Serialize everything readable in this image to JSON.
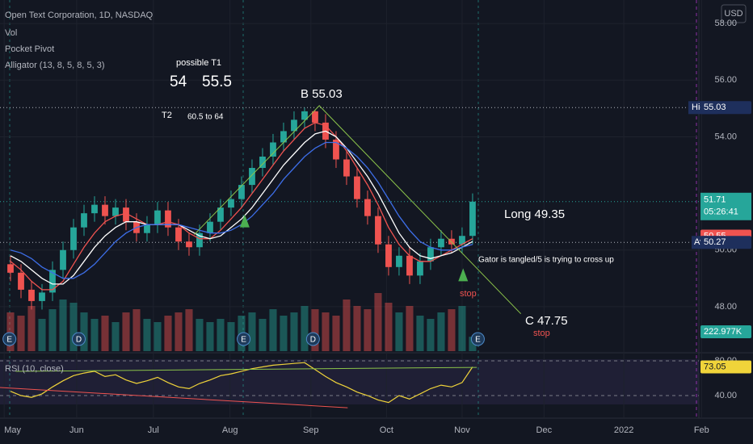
{
  "chart_data": {
    "type": "candlestick",
    "title": "Open Text Corporation, 1D, NASDAQ",
    "indicators": [
      "Vol",
      "Pocket Pivot",
      "Alligator (13, 8, 5, 8, 5, 3)"
    ],
    "currency": "USD",
    "up_color": "#26a69a",
    "down_color": "#ef5350",
    "grid": true,
    "xlim": [
      -1,
      70.7
    ],
    "xticks": [
      {
        "value": -0.6,
        "label": "May"
      },
      {
        "value": 6.3,
        "label": "Jun"
      },
      {
        "value": 13.6,
        "label": "Jul"
      },
      {
        "value": 20.9,
        "label": "Aug"
      },
      {
        "value": 28.6,
        "label": "Sep"
      },
      {
        "value": 35.8,
        "label": "Oct"
      },
      {
        "value": 43,
        "label": "Nov"
      },
      {
        "value": 50.8,
        "label": "Dec"
      },
      {
        "value": 58.4,
        "label": "2022"
      },
      {
        "value": 65.8,
        "label": "Feb"
      }
    ],
    "ylim": [
      46.43,
      58.83
    ],
    "yticks": [
      {
        "value": 58,
        "label": "58.00"
      },
      {
        "value": 56,
        "label": "56.00"
      },
      {
        "value": 54,
        "label": "54.00"
      },
      {
        "value": 50,
        "label": "50.00"
      },
      {
        "value": 48,
        "label": "48.00"
      }
    ],
    "open": [
      49.5,
      49.2,
      48.6,
      48.2,
      48.5,
      49.3,
      50.0,
      50.8,
      51.3,
      51.6,
      51.2,
      51.5,
      51.0,
      50.6,
      50.9,
      51.4,
      50.8,
      50.3,
      50.1,
      50.6,
      51.0,
      51.5,
      51.8,
      52.3,
      52.9,
      53.3,
      53.8,
      54.2,
      54.6,
      54.9,
      54.5,
      53.9,
      53.2,
      52.6,
      51.8,
      51.2,
      50.2,
      49.4,
      49.8,
      49.1,
      49.6,
      50.1,
      50.4,
      50.2,
      50.5
    ],
    "high": [
      49.8,
      49.5,
      48.9,
      48.8,
      49.6,
      50.3,
      51.1,
      51.6,
      51.9,
      51.9,
      51.8,
      51.8,
      51.3,
      51.2,
      51.7,
      51.7,
      51.1,
      50.6,
      50.9,
      51.3,
      51.8,
      52.1,
      52.6,
      53.2,
      53.6,
      54.1,
      54.5,
      54.9,
      55.03,
      54.95,
      54.8,
      54.2,
      53.5,
      52.9,
      52.1,
      51.5,
      50.5,
      50.1,
      50.1,
      49.9,
      50.4,
      50.7,
      50.7,
      50.8,
      52.0
    ],
    "low": [
      48.9,
      48.3,
      47.9,
      47.9,
      48.2,
      49.0,
      49.7,
      50.5,
      51.0,
      50.9,
      50.9,
      50.7,
      50.3,
      50.3,
      50.6,
      50.5,
      50.0,
      49.8,
      49.8,
      50.3,
      50.7,
      51.2,
      51.5,
      52.0,
      52.6,
      53.0,
      53.5,
      53.9,
      54.3,
      54.2,
      53.6,
      52.9,
      52.3,
      51.5,
      50.9,
      49.9,
      49.1,
      49.1,
      48.8,
      48.8,
      49.3,
      49.8,
      49.9,
      49.9,
      50.2
    ],
    "close": [
      49.2,
      48.6,
      48.2,
      48.5,
      49.3,
      50.0,
      50.8,
      51.3,
      51.6,
      51.2,
      51.5,
      51.0,
      50.6,
      50.9,
      51.4,
      50.8,
      50.3,
      50.1,
      50.6,
      51.0,
      51.5,
      51.8,
      52.3,
      52.9,
      53.3,
      53.8,
      54.2,
      54.6,
      54.9,
      54.5,
      53.9,
      53.2,
      52.6,
      51.8,
      51.2,
      50.2,
      49.4,
      49.8,
      49.1,
      49.6,
      50.1,
      50.4,
      50.2,
      50.5,
      51.71
    ],
    "volume": {
      "ylim": [
        0,
        1500000
      ],
      "label": "222.977K",
      "color": "#26a69a",
      "values": [
        600000,
        550000,
        700000,
        500000,
        650000,
        800000,
        750000,
        600000,
        500000,
        550000,
        450000,
        600000,
        650000,
        500000,
        450000,
        550000,
        600000,
        650000,
        500000,
        450000,
        500000,
        450000,
        550000,
        600000,
        500000,
        650000,
        550000,
        600000,
        700000,
        650000,
        600000,
        550000,
        800000,
        700000,
        650000,
        900000,
        750000,
        600000,
        700000,
        550000,
        500000,
        600000,
        650000,
        700000,
        222977
      ]
    },
    "lines": [
      {
        "color": "#ef5350",
        "values": [
          49.6,
          49.3,
          48.9,
          48.6,
          48.6,
          48.9,
          49.5,
          50.1,
          50.6,
          51.0,
          51.2,
          51.3,
          51.1,
          50.9,
          50.9,
          51.0,
          50.9,
          50.6,
          50.4,
          50.4,
          50.7,
          51.1,
          51.5,
          52.0,
          52.5,
          53.0,
          53.5,
          53.9,
          54.3,
          54.5,
          54.4,
          54.0,
          53.5,
          52.9,
          52.3,
          51.6,
          50.8,
          50.2,
          49.8,
          49.6,
          49.6,
          49.8,
          50.0,
          50.2,
          50.4
        ]
      },
      {
        "color": "#ffffff",
        "values": [
          49.8,
          49.6,
          49.3,
          49.0,
          48.8,
          48.8,
          49.1,
          49.6,
          50.1,
          50.5,
          50.8,
          51.0,
          51.0,
          50.9,
          50.9,
          50.9,
          50.9,
          50.7,
          50.5,
          50.4,
          50.5,
          50.8,
          51.1,
          51.5,
          52.0,
          52.5,
          53.0,
          53.4,
          53.8,
          54.1,
          54.2,
          54.0,
          53.6,
          53.1,
          52.6,
          52.0,
          51.3,
          50.6,
          50.1,
          49.8,
          49.7,
          49.8,
          49.9,
          50.1,
          50.3
        ]
      },
      {
        "color": "#3d6ee8",
        "values": [
          50.0,
          49.9,
          49.7,
          49.4,
          49.2,
          49.0,
          49.0,
          49.2,
          49.5,
          49.9,
          50.3,
          50.6,
          50.8,
          50.9,
          50.9,
          50.9,
          50.9,
          50.8,
          50.7,
          50.6,
          50.6,
          50.7,
          50.9,
          51.2,
          51.6,
          52.0,
          52.5,
          52.9,
          53.3,
          53.6,
          53.8,
          53.8,
          53.6,
          53.3,
          52.9,
          52.4,
          51.8,
          51.2,
          50.7,
          50.3,
          50.1,
          50.0,
          50.0,
          50.1,
          50.2
        ]
      }
    ],
    "trendlines": [
      {
        "color": "#8bc34a",
        "x": [
          17.5,
          29.4,
          48.6
        ],
        "y": [
          50.55,
          55.1,
          47.75
        ]
      }
    ],
    "signals": [
      {
        "x": 22.3,
        "y": 51.0
      },
      {
        "x": 43.1,
        "y": 49.1
      }
    ],
    "high_label": "High",
    "red_level": 50.55,
    "countdown": "05:26:41",
    "avg_label": "Avg",
    "avg": 50.27,
    "events": [
      "E",
      "D",
      "E",
      "D",
      "E"
    ],
    "annotations": [
      "possible T1",
      "54",
      "55.5",
      "T2",
      "60.5 to 64",
      "B 55.03",
      "Long 49.35",
      "Gator is tangled/5 is trying to cross up",
      "stop",
      "C 47.75",
      "stop"
    ],
    "rsi": {
      "title": "RSI (10, close)",
      "color": "#f0d43a",
      "ylim": [
        14,
        89.3
      ],
      "yticks": [
        {
          "value": 80,
          "label": "80.00"
        },
        {
          "value": 40,
          "label": "40.00"
        }
      ],
      "values": [
        45,
        40,
        38,
        42,
        50,
        57,
        63,
        66,
        68,
        62,
        64,
        58,
        54,
        57,
        61,
        55,
        50,
        48,
        54,
        58,
        63,
        65,
        68,
        71,
        73,
        75,
        76,
        77,
        78,
        70,
        62,
        55,
        50,
        44,
        40,
        35,
        32,
        40,
        36,
        42,
        48,
        52,
        50,
        55,
        73.05
      ],
      "trendlines": [
        {
          "color": "#ef5350",
          "x": [
            -1,
            32.1
          ],
          "y": [
            49.3,
            26
          ]
        },
        {
          "color": "#8bc34a",
          "x": [
            0.5,
            44.4
          ],
          "y": [
            67.9,
            72.5
          ]
        }
      ]
    }
  }
}
